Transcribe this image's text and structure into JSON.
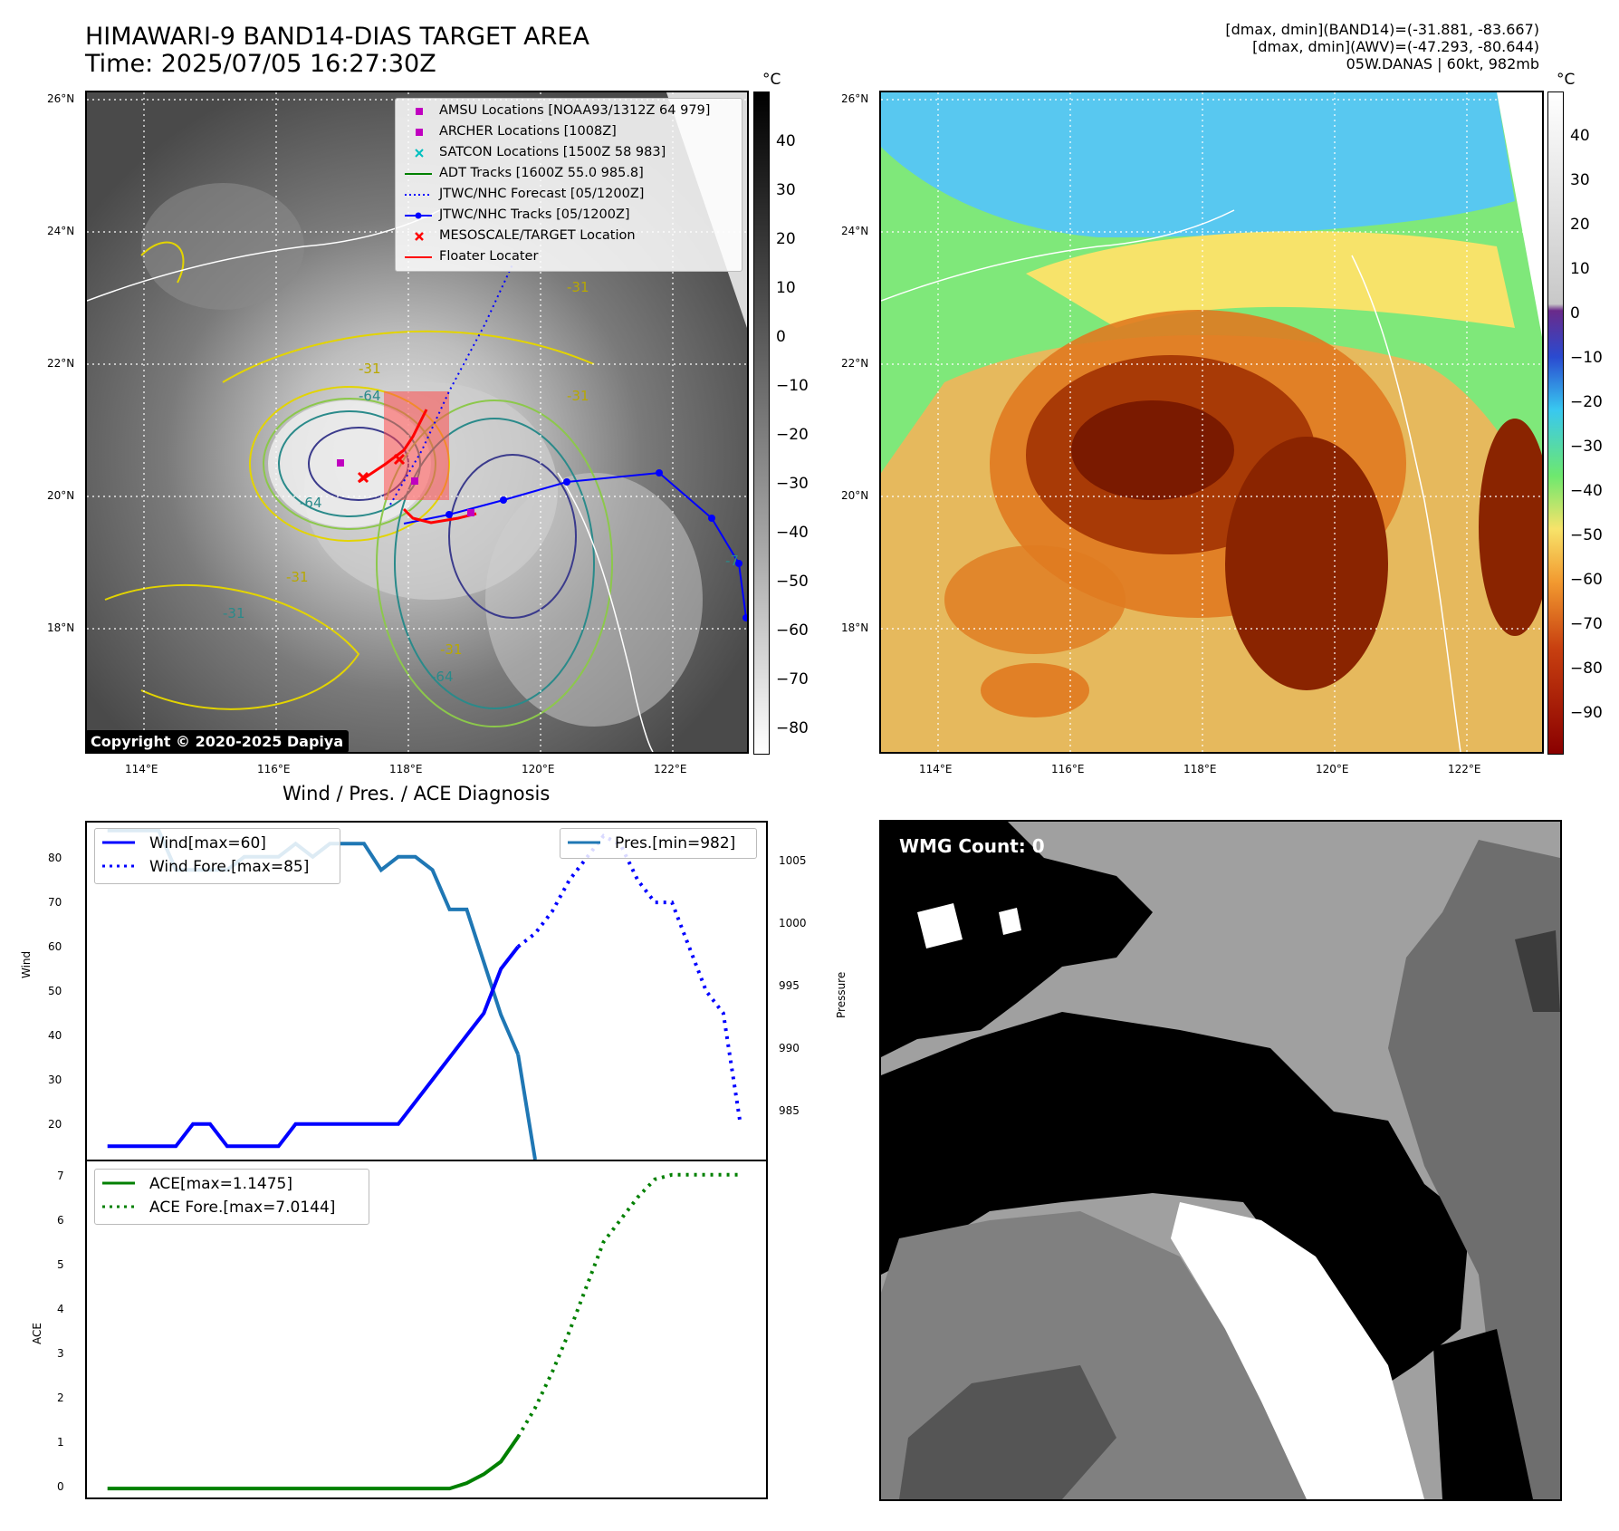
{
  "header": {
    "title_line1": "HIMAWARI-9 BAND14-DIAS TARGET AREA",
    "title_line2": "Time: 2025/07/05 16:27:30Z",
    "info_line1": "[dmax, dmin](BAND14)=(-31.881, -83.667)",
    "info_line2": "[dmax, dmin](AWV)=(-47.293, -80.644)",
    "info_line3": "05W.DANAS | 60kt, 982mb"
  },
  "map_axes": {
    "lon_ticks": [
      "114°E",
      "116°E",
      "118°E",
      "120°E",
      "122°E"
    ],
    "lat_ticks": [
      "26°N",
      "24°N",
      "22°N",
      "20°N",
      "18°N"
    ],
    "lon_range": [
      113.1,
      123.1
    ],
    "lat_range": [
      16.1,
      26.1
    ]
  },
  "ir_panel": {
    "colorbar_unit": "°C",
    "colorbar_ticks": [
      "40",
      "30",
      "20",
      "10",
      "0",
      "−10",
      "−20",
      "−30",
      "−40",
      "−50",
      "−60",
      "−70",
      "−80"
    ],
    "copyright": "Copyright © 2020-2025 Dapiya",
    "legend": [
      {
        "label": "AMSU Locations [NOAA93/1312Z 64 979]",
        "marker": "square",
        "color": "#c000c0"
      },
      {
        "label": "ARCHER Locations [1008Z]",
        "marker": "square",
        "color": "#c000c0"
      },
      {
        "label": "SATCON Locations [1500Z 58 983]",
        "marker": "x",
        "color": "#00bfbf"
      },
      {
        "label": "ADT Tracks [1600Z 55.0 985.8]",
        "marker": "line",
        "color": "#008000"
      },
      {
        "label": "JTWC/NHC Forecast [05/1200Z]",
        "marker": "dotted",
        "color": "#0000ff"
      },
      {
        "label": "JTWC/NHC Tracks [05/1200Z]",
        "marker": "line-dot",
        "color": "#0000ff"
      },
      {
        "label": "MESOSCALE/TARGET Location",
        "marker": "x",
        "color": "#ff0000"
      },
      {
        "label": "Floater Locater",
        "marker": "line",
        "color": "#ff0000"
      }
    ],
    "contour_labels": [
      "-31",
      "-31",
      "-31",
      "-31",
      "-31",
      "-64",
      "-64",
      "-64",
      "-31",
      "-7"
    ]
  },
  "awv_panel": {
    "colorbar_unit": "°C",
    "colorbar_ticks": [
      "40",
      "30",
      "20",
      "10",
      "0",
      "−10",
      "−20",
      "−30",
      "−40",
      "−50",
      "−60",
      "−70",
      "−80",
      "−90"
    ]
  },
  "diagnosis": {
    "title": "Wind / Pres. / ACE Diagnosis",
    "wind_ylabel": "Wind",
    "pressure_ylabel": "Pressure",
    "ace_ylabel": "ACE",
    "wind_legend": [
      "Wind[max=60]",
      "Wind Fore.[max=85]"
    ],
    "pres_legend": [
      "Pres.[min=982]"
    ],
    "ace_legend": [
      "ACE[max=1.1475]",
      "ACE Fore.[max=7.0144]"
    ],
    "wind_ticks": [
      "80",
      "70",
      "60",
      "50",
      "40",
      "30",
      "20"
    ],
    "pres_ticks": [
      "1005",
      "1000",
      "995",
      "990",
      "985"
    ],
    "ace_ticks": [
      "7",
      "6",
      "5",
      "4",
      "3",
      "2",
      "1",
      "0"
    ]
  },
  "chart_data": [
    {
      "type": "line",
      "title": "Wind / Pres. / ACE Diagnosis",
      "ylabel": "Wind",
      "ylim": [
        12,
        88
      ],
      "y2label": "Pressure",
      "y2lim": [
        982,
        1007.6
      ],
      "series": [
        {
          "name": "Wind[max=60]",
          "x": [
            0,
            1,
            2,
            3,
            4,
            5,
            6,
            7,
            8,
            9,
            10,
            11,
            12,
            13,
            14,
            15,
            16,
            17,
            18,
            19,
            20,
            21,
            22,
            23,
            24
          ],
          "values": [
            15,
            15,
            15,
            15,
            15,
            20,
            20,
            15,
            15,
            15,
            15,
            20,
            20,
            20,
            20,
            20,
            20,
            20,
            25,
            30,
            35,
            40,
            45,
            55,
            60
          ]
        },
        {
          "name": "Wind Fore.[max=85]",
          "x": [
            24,
            25,
            26,
            27,
            28,
            29,
            30,
            31,
            32,
            33,
            34,
            35,
            36,
            37
          ],
          "values": [
            60,
            63,
            68,
            75,
            80,
            85,
            83,
            75,
            70,
            70,
            60,
            50,
            45,
            20
          ]
        },
        {
          "name": "Pres.[min=982]",
          "x": [
            0,
            1,
            2,
            3,
            4,
            5,
            6,
            7,
            8,
            9,
            10,
            11,
            12,
            13,
            14,
            15,
            16,
            17,
            18,
            19,
            20,
            21,
            22,
            23,
            24
          ],
          "values": [
            1007,
            1007,
            1007,
            1007,
            1004,
            1004,
            1004,
            1004,
            1005,
            1005,
            1005,
            1006,
            1005,
            1006,
            1006,
            1006,
            1004,
            1005,
            1005,
            1004,
            1001,
            1001,
            997,
            993,
            990
          ],
          "axis": "y2"
        },
        {
          "name": "Pres. tail",
          "x": [
            24,
            25
          ],
          "values": [
            990,
            982
          ],
          "axis": "y2"
        }
      ]
    },
    {
      "type": "line",
      "ylabel": "ACE",
      "ylim": [
        -0.2,
        7.3
      ],
      "series": [
        {
          "name": "ACE[max=1.1475]",
          "x": [
            0,
            5,
            10,
            15,
            20,
            21,
            22,
            23,
            24
          ],
          "values": [
            0,
            0,
            0,
            0,
            0,
            0.12,
            0.32,
            0.6,
            1.15
          ]
        },
        {
          "name": "ACE Fore.[max=7.0144]",
          "x": [
            24,
            25,
            26,
            27,
            28,
            29,
            30,
            31,
            32,
            33,
            34,
            35,
            36,
            37
          ],
          "values": [
            1.15,
            1.8,
            2.6,
            3.5,
            4.5,
            5.5,
            6.0,
            6.5,
            6.9,
            7.0,
            7.0,
            7.0,
            7.0,
            7.0
          ]
        }
      ]
    }
  ],
  "wmg_panel": {
    "label": "WMG Count: 0"
  }
}
